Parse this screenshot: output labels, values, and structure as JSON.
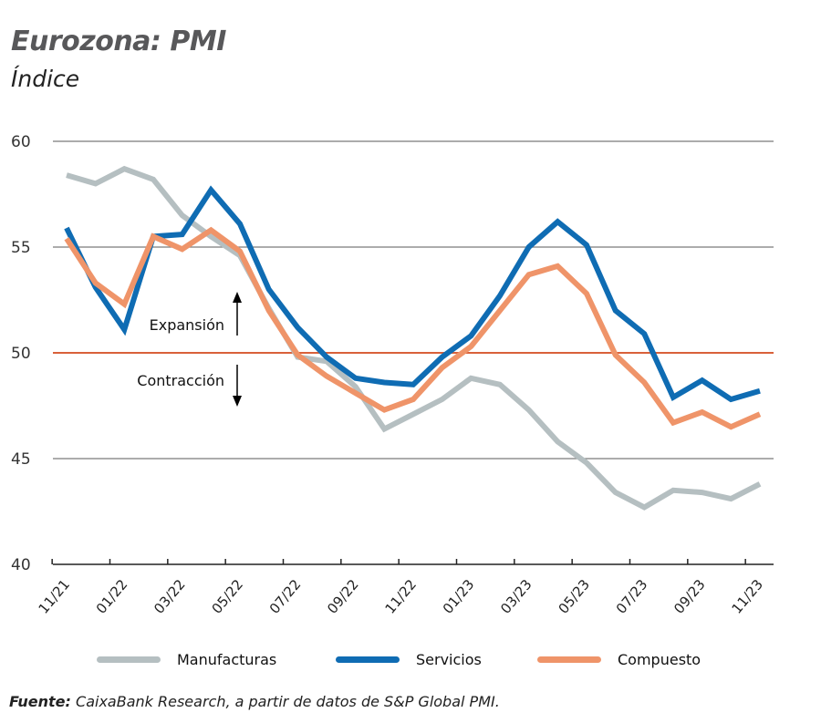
{
  "header": {
    "title": "Eurozona: PMI",
    "subtitle": "Índice"
  },
  "chart_data": {
    "type": "line",
    "title": "Eurozona: PMI",
    "subtitle": "Índice",
    "xlabel": "",
    "ylabel": "Índice",
    "ylim": [
      40,
      60
    ],
    "yticks": [
      40,
      45,
      50,
      55,
      60
    ],
    "grid": true,
    "reference_line": {
      "value": 50,
      "color": "#d9613a"
    },
    "annotations": [
      {
        "text": "Expansión",
        "direction": "up"
      },
      {
        "text": "Contracción",
        "direction": "down"
      }
    ],
    "x": [
      "11/21",
      "12/21",
      "01/22",
      "02/22",
      "03/22",
      "04/22",
      "05/22",
      "06/22",
      "07/22",
      "08/22",
      "09/22",
      "10/22",
      "11/22",
      "12/22",
      "01/23",
      "02/23",
      "03/23",
      "04/23",
      "05/23",
      "06/23",
      "07/23",
      "08/23",
      "09/23",
      "10/23",
      "11/23"
    ],
    "xtick_labels": [
      "11/21",
      "01/22",
      "03/22",
      "05/22",
      "07/22",
      "09/22",
      "11/22",
      "01/23",
      "03/23",
      "05/23",
      "07/23",
      "09/23",
      "11/23"
    ],
    "series": [
      {
        "name": "Manufacturas",
        "color": "#b5bfc1",
        "values": [
          58.4,
          58.0,
          58.7,
          58.2,
          56.5,
          55.5,
          54.6,
          52.1,
          49.8,
          49.6,
          48.4,
          46.4,
          47.1,
          47.8,
          48.8,
          48.5,
          47.3,
          45.8,
          44.8,
          43.4,
          42.7,
          43.5,
          43.4,
          43.1,
          43.8
        ]
      },
      {
        "name": "Servicios",
        "color": "#0f6cb3",
        "values": [
          55.9,
          53.1,
          51.1,
          55.5,
          55.6,
          57.7,
          56.1,
          53.0,
          51.2,
          49.8,
          48.8,
          48.6,
          48.5,
          49.8,
          50.8,
          52.7,
          55.0,
          56.2,
          55.1,
          52.0,
          50.9,
          47.9,
          48.7,
          47.8,
          48.2
        ]
      },
      {
        "name": "Compuesto",
        "color": "#ef9469",
        "values": [
          55.4,
          53.3,
          52.3,
          55.5,
          54.9,
          55.8,
          54.8,
          52.0,
          49.9,
          48.9,
          48.1,
          47.3,
          47.8,
          49.3,
          50.3,
          52.0,
          53.7,
          54.1,
          52.8,
          49.9,
          48.6,
          46.7,
          47.2,
          46.5,
          47.1
        ]
      }
    ],
    "legend": "bottom"
  },
  "source": {
    "label": "Fuente:",
    "text": " CaixaBank Research, a partir de datos de S&P Global PMI."
  }
}
